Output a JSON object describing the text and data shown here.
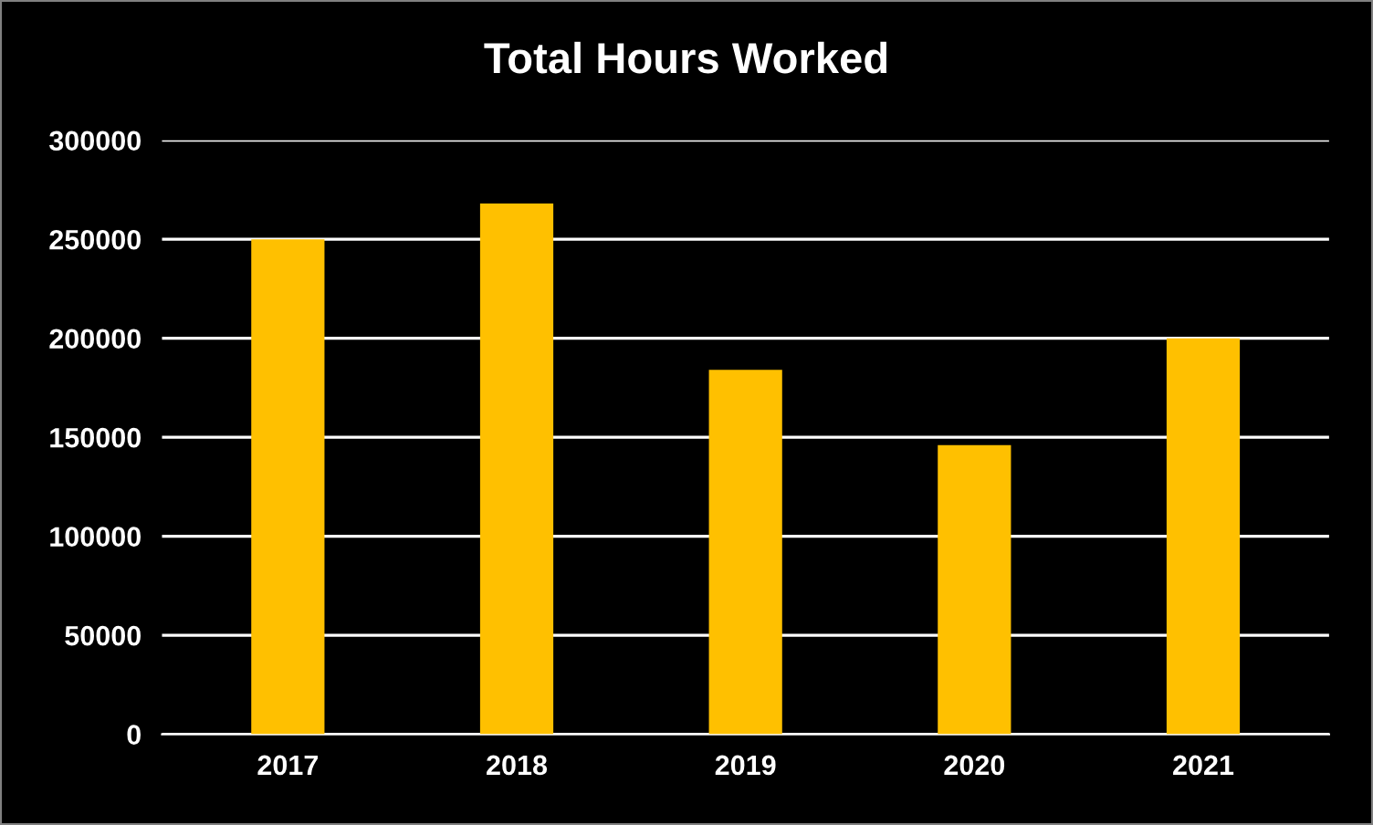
{
  "chart_data": {
    "type": "bar",
    "title": "Total Hours Worked",
    "categories": [
      "2017",
      "2018",
      "2019",
      "2020",
      "2021"
    ],
    "values": [
      250000,
      268000,
      184000,
      146000,
      200000
    ],
    "color": "#ffc000",
    "ylim": [
      0,
      300000
    ],
    "yticks": [
      0,
      50000,
      100000,
      150000,
      200000,
      250000,
      300000
    ],
    "grid": "y",
    "legend": false
  }
}
